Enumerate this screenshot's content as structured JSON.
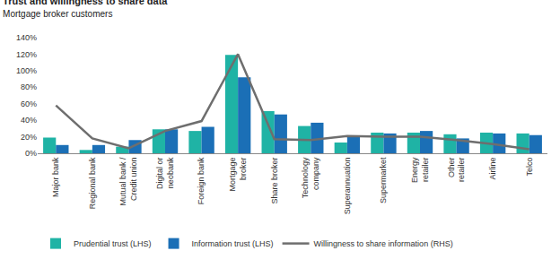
{
  "chart_data": {
    "type": "bar",
    "title": "Trust and willingness to share data",
    "subtitle": "Mortgage broker customers",
    "categories": [
      "Major bank",
      "Regional bank",
      "Mutual bank / Credit union",
      "Digital or neobank",
      "Foreign bank",
      "Mortgage broker",
      "Share broker",
      "Technology company",
      "Superannuation",
      "Supermarket",
      "Energy retailer",
      "Other retailer",
      "Airline",
      "Telco"
    ],
    "series": [
      {
        "name": "Prudential trust (LHS)",
        "type": "bar",
        "color": "#1fb3a5",
        "values": [
          19,
          4,
          8,
          29,
          27,
          119,
          51,
          33,
          13,
          25,
          25,
          23,
          25,
          24
        ]
      },
      {
        "name": "Information trust (LHS)",
        "type": "bar",
        "color": "#1b6fb6",
        "values": [
          10,
          10,
          16,
          29,
          32,
          92,
          47,
          37,
          20,
          24,
          27,
          18,
          24,
          22
        ]
      },
      {
        "name": "Willingness to share information (RHS)",
        "type": "line",
        "color": "#6e6e6e",
        "line_style": "solid",
        "values": [
          58,
          18,
          6,
          27,
          39,
          120,
          17,
          16,
          21,
          20,
          20,
          16,
          11,
          5
        ]
      }
    ],
    "ylim": [
      0,
      140
    ],
    "yticks": [
      {
        "value": 0,
        "label": "0%"
      },
      {
        "value": 20,
        "label": "20%"
      },
      {
        "value": 40,
        "label": "40%"
      },
      {
        "value": 60,
        "label": "60%"
      },
      {
        "value": 80,
        "label": "80%"
      },
      {
        "value": 100,
        "label": "100%"
      },
      {
        "value": 120,
        "label": "120%"
      },
      {
        "value": 140,
        "label": "140%"
      }
    ],
    "grid": false,
    "legend": "bottom"
  }
}
